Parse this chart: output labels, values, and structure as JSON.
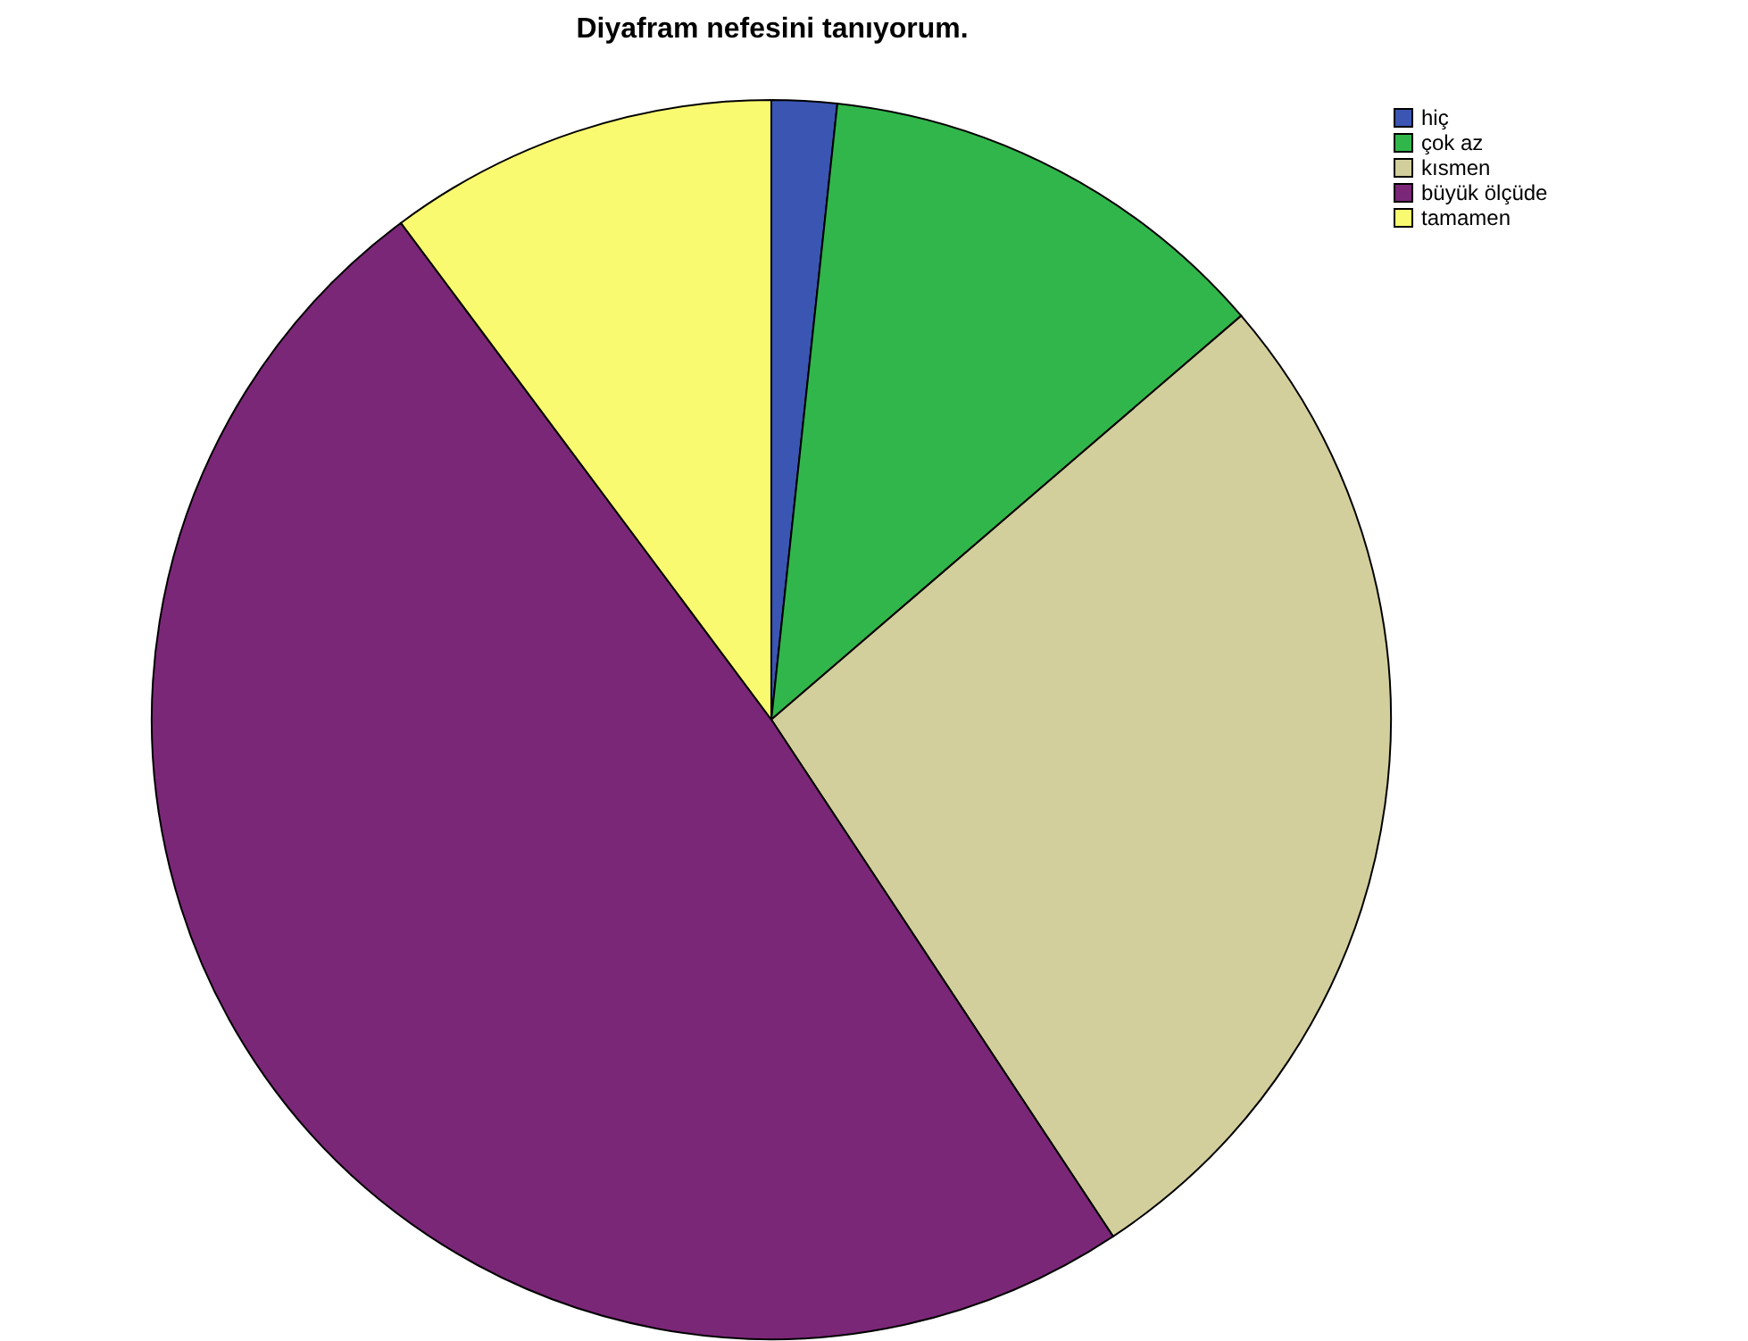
{
  "chart_data": {
    "type": "pie",
    "title": "Diyafram nefesini tanıyorum.",
    "categories": [
      "hiç",
      "çok az",
      "kısmen",
      "büyük ölçüde",
      "tamamen"
    ],
    "values": [
      1.7,
      12,
      27,
      49.1,
      10.2
    ],
    "colors": [
      "#3b55b2",
      "#31b64b",
      "#d3cf9c",
      "#7b2778",
      "#fafa70"
    ],
    "legend": "top right"
  }
}
